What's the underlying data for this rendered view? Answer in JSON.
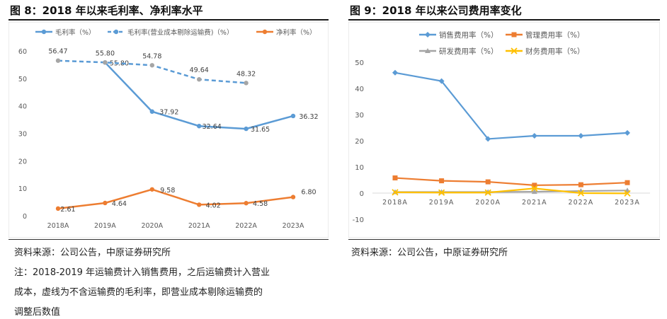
{
  "left_title": "图 8：2018 年以来毛利率、净利率水平",
  "right_title": "图 9：2018 年以来公司费用率变化",
  "left_source": "资料来源：公司公告，中原证券研究所",
  "right_source": "资料来源：公司公告，中原证券研究所",
  "left_notes": [
    "注：2018-2019 年运输费计入销售费用，之后运输费计入营业",
    "成本，虚线为不含运输费的毛利率，即营业成本剔除运输费的",
    "调整后数值"
  ],
  "chart_data": [
    {
      "type": "line",
      "categories": [
        "2018A",
        "2019A",
        "2020A",
        "2021A",
        "2022A",
        "2023A"
      ],
      "ylim": [
        0,
        60
      ],
      "yticks": [
        0,
        10,
        20,
        30,
        40,
        50,
        60
      ],
      "legend_position": "top",
      "grid": false,
      "series": [
        {
          "name": "毛利率（%）",
          "values": [
            null,
            55.8,
            37.92,
            32.64,
            31.65,
            36.32
          ],
          "labels": [
            "",
            "55.80",
            "37.92",
            "32.64",
            "31.65",
            "36.32"
          ],
          "color": "#5b9bd5",
          "dashed": false,
          "marker": "circle"
        },
        {
          "name": "毛利率(营业成本剔除运输费)（%）",
          "values": [
            56.47,
            55.8,
            54.78,
            49.64,
            48.32,
            null
          ],
          "labels": [
            "56.47",
            "55.80",
            "54.78",
            "49.64",
            "48.32",
            ""
          ],
          "color": "#5b9bd5",
          "dashed": true,
          "marker": "circle"
        },
        {
          "name": "净利率（%）",
          "values": [
            2.61,
            4.64,
            9.58,
            4.02,
            4.58,
            6.8
          ],
          "labels": [
            "2.61",
            "4.64",
            "9.58",
            "4.02",
            "4.58",
            "6.80"
          ],
          "color": "#ed7d31",
          "dashed": false,
          "marker": "circle"
        }
      ]
    },
    {
      "type": "line",
      "categories": [
        "2018A",
        "2019A",
        "2020A",
        "2021A",
        "2022A",
        "2023A"
      ],
      "ylim": [
        -10,
        50
      ],
      "yticks": [
        -10,
        0,
        10,
        20,
        30,
        40,
        50
      ],
      "legend_position": "top",
      "grid": false,
      "series": [
        {
          "name": "销售费用率（%）",
          "values": [
            46.0,
            42.8,
            20.7,
            21.9,
            21.9,
            23.0
          ],
          "color": "#5b9bd5",
          "marker": "diamond"
        },
        {
          "name": "管理费用率（%）",
          "values": [
            5.8,
            4.7,
            4.3,
            3.0,
            3.2,
            4.0
          ],
          "color": "#ed7d31",
          "marker": "square"
        },
        {
          "name": "研发费用率（%）",
          "values": [
            0.4,
            0.4,
            0.4,
            0.5,
            0.8,
            1.0
          ],
          "color": "#a5a5a5",
          "marker": "triangle"
        },
        {
          "name": "财务费用率（%）",
          "values": [
            0.3,
            0.2,
            0.2,
            1.8,
            0.0,
            -0.1
          ],
          "color": "#ffc000",
          "marker": "cross"
        }
      ]
    }
  ]
}
